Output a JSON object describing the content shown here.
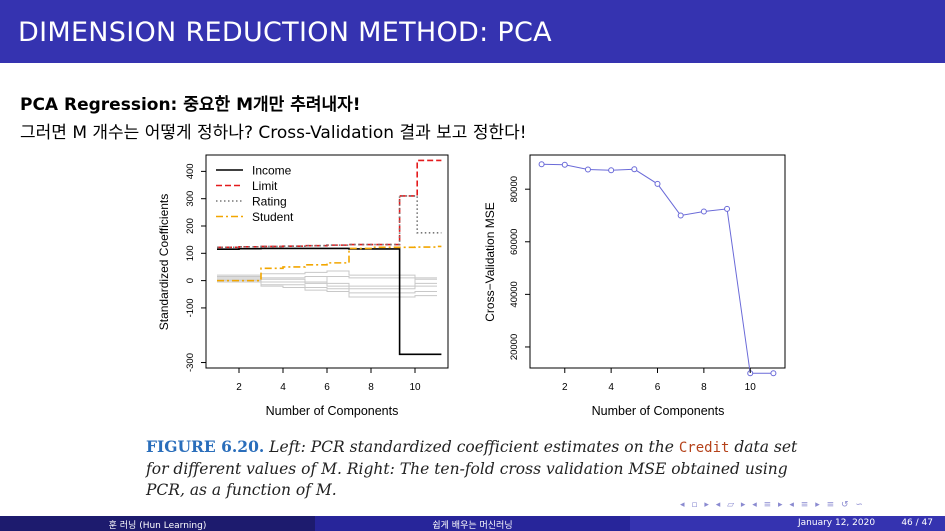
{
  "slide": {
    "title": "DIMENSION REDUCTION METHOD: PCA",
    "line1": "PCA Regression: 중요한 M개만 추려내자!",
    "line2": "그러면 M 개수는 어떻게 정하나? Cross-Validation 결과 보고 정한다!"
  },
  "caption": {
    "fig_label": "FIGURE 6.20.",
    "text_part1": " Left: PCR standardized coefficient estimates on the ",
    "code": "Credit",
    "text_part2": " data set for different values of M. Right: The ten-fold cross validation MSE obtained using PCR, as a function of M."
  },
  "footer": {
    "left": "훈 러닝 (Hun Learning)",
    "center": "쉽게 배우는 머신러닝",
    "date": "January 12, 2020",
    "page": "46 / 47"
  },
  "nav_symbols": "◂ ▫ ▸ ◂ ▱ ▸ ◂ ≡ ▸ ◂ ≡ ▸  ≡  ↺ ∽",
  "colors": {
    "header": "#3533b0",
    "income": "#000000",
    "limit": "#e41a1c",
    "rating": "#777777",
    "student": "#f2a600",
    "mse": "#6a6ad8"
  },
  "chart_data": [
    {
      "type": "line",
      "xlabel": "Number of Components",
      "ylabel": "Standardized Coefficients",
      "xlim": [
        0.5,
        11.5
      ],
      "ylim": [
        -320,
        460
      ],
      "xticks": [
        2,
        4,
        6,
        8,
        10
      ],
      "yticks": [
        -300,
        -100,
        0,
        100,
        200,
        300,
        400
      ],
      "legend": "top-left",
      "series": [
        {
          "name": "Income",
          "style": "solid",
          "color": "#000000",
          "x": [
            1,
            2,
            3,
            4,
            5,
            6,
            7,
            8,
            9,
            9.3,
            10,
            11
          ],
          "values": [
            115,
            117,
            118,
            118,
            118,
            118,
            116,
            116,
            116,
            -270,
            -270,
            -270
          ]
        },
        {
          "name": "Limit",
          "style": "dashed",
          "color": "#e41a1c",
          "x": [
            1,
            2,
            3,
            4,
            5,
            6,
            7,
            8,
            9,
            9.3,
            10,
            10.1,
            11
          ],
          "values": [
            122,
            124,
            125,
            126,
            128,
            130,
            132,
            132,
            132,
            310,
            310,
            440,
            440
          ]
        },
        {
          "name": "Rating",
          "style": "dotted",
          "color": "#777777",
          "x": [
            1,
            2,
            3,
            4,
            5,
            6,
            7,
            8,
            9,
            9.3,
            10,
            10.1,
            11
          ],
          "values": [
            122,
            124,
            125,
            126,
            128,
            130,
            132,
            132,
            132,
            310,
            310,
            175,
            175
          ]
        },
        {
          "name": "Student",
          "style": "dashdot",
          "color": "#f2a600",
          "x": [
            1,
            2,
            3,
            4,
            5,
            6,
            7,
            8,
            9,
            10,
            11
          ],
          "values": [
            0,
            0,
            45,
            50,
            58,
            65,
            118,
            122,
            122,
            123,
            125
          ]
        }
      ],
      "grey_series": [
        [
          20,
          20,
          5,
          5,
          -5,
          -10,
          -45,
          -45,
          -45,
          -40,
          -40
        ],
        [
          10,
          10,
          -15,
          -15,
          -25,
          -30,
          -60,
          -60,
          -60,
          -55,
          -55
        ],
        [
          -5,
          -5,
          -20,
          -25,
          -35,
          -40,
          -20,
          -20,
          -20,
          10,
          10
        ],
        [
          15,
          15,
          25,
          25,
          30,
          35,
          20,
          20,
          20,
          5,
          5
        ],
        [
          0,
          0,
          10,
          10,
          15,
          -20,
          -30,
          -30,
          -30,
          -20,
          -20
        ],
        [
          5,
          5,
          -5,
          -5,
          -10,
          15,
          10,
          10,
          10,
          -10,
          -10
        ]
      ]
    },
    {
      "type": "line",
      "xlabel": "Number of Components",
      "ylabel": "Cross−Validation MSE",
      "xlim": [
        0.5,
        11.5
      ],
      "ylim": [
        12000,
        93000
      ],
      "xticks": [
        2,
        4,
        6,
        8,
        10
      ],
      "yticks": [
        20000,
        40000,
        60000,
        80000
      ],
      "x": [
        1,
        2,
        3,
        4,
        5,
        6,
        7,
        8,
        9,
        10,
        11
      ],
      "values": [
        89500,
        89300,
        87500,
        87200,
        87600,
        82000,
        70000,
        71500,
        72500,
        10000,
        10000
      ]
    }
  ]
}
